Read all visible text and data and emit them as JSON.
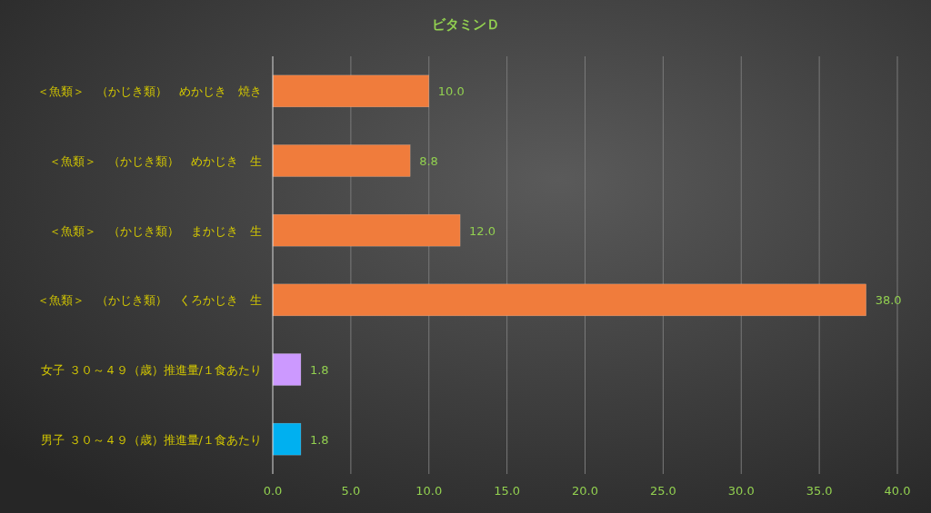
{
  "chart_data": {
    "type": "bar",
    "orientation": "horizontal",
    "title": "ビタミンＤ",
    "categories": [
      "＜魚類＞　（かじき類）　めかじき　焼き",
      "＜魚類＞　（かじき類）　めかじき　生",
      "＜魚類＞　（かじき類）　まかじき　生",
      "＜魚類＞　（かじき類）　くろかじき　生",
      "女子 ３０～４９（歳）推進量/１食あたり",
      "男子 ３０～４９（歳）推進量/１食あたり"
    ],
    "values": [
      10.0,
      8.8,
      12.0,
      38.0,
      1.8,
      1.8
    ],
    "value_labels": [
      "10.0",
      "8.8",
      "12.0",
      "38.0",
      "1.8",
      "1.8"
    ],
    "colors": [
      "#f07c3c",
      "#f07c3c",
      "#f07c3c",
      "#f07c3c",
      "#cc99ff",
      "#00b0f0"
    ],
    "xlim": [
      0,
      40
    ],
    "xticks": [
      {
        "value": 0,
        "label": "0.0"
      },
      {
        "value": 5,
        "label": "5.0"
      },
      {
        "value": 10,
        "label": "10.0"
      },
      {
        "value": 15,
        "label": "15.0"
      },
      {
        "value": 20,
        "label": "20.0"
      },
      {
        "value": 25,
        "label": "25.0"
      },
      {
        "value": 30,
        "label": "30.0"
      },
      {
        "value": 35,
        "label": "35.0"
      },
      {
        "value": 40,
        "label": "40.0"
      }
    ],
    "grid": "x"
  }
}
